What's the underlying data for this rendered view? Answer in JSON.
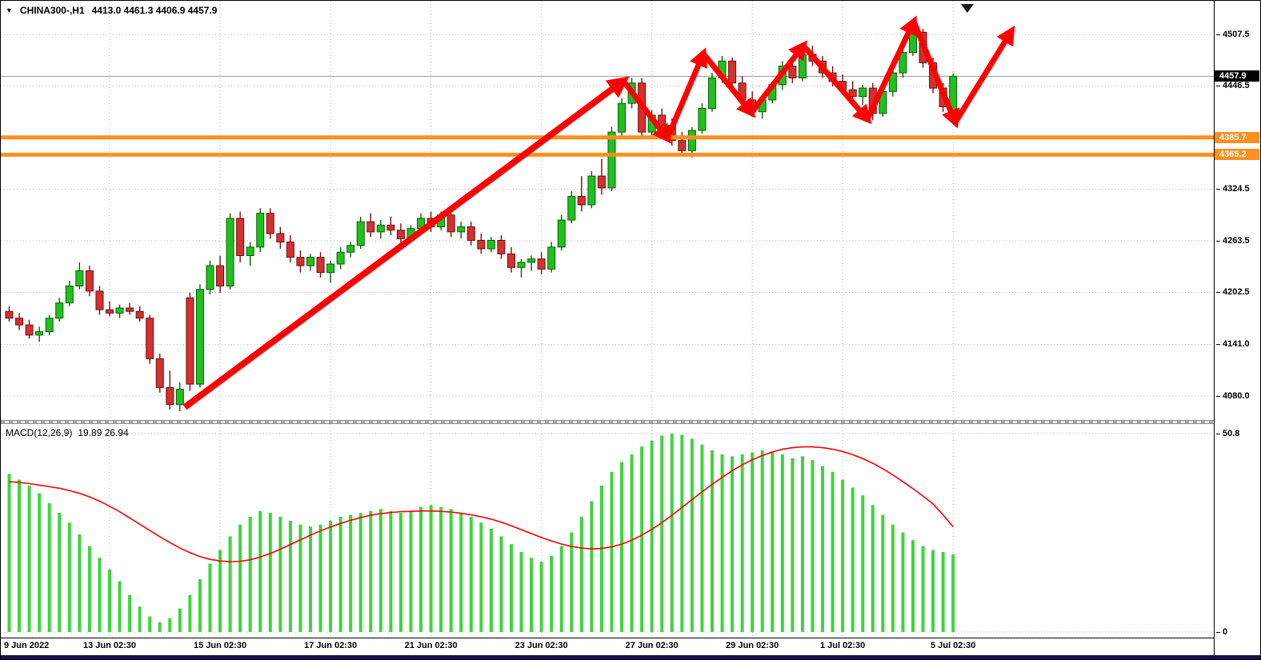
{
  "header": {
    "symbol_period": "CHINA300-,H1",
    "ohlc": "4413.0 4461.3 4406.9 4457.9"
  },
  "icons": {
    "dropdown": "▼"
  },
  "colors": {
    "bull": "#1fc11f",
    "bull_stroke": "#0a5c0a",
    "bear": "#d43030",
    "bear_stroke": "#6e0f0f",
    "grid": "#b4b4b4",
    "hline_orange": "#ff8f1f",
    "arrow": "#ff0000",
    "signal_line": "#ff0000",
    "macd_bar": "#3fd43f",
    "current_price_line": "#9a9a9a",
    "tag_current_bg": "#000000",
    "shift_marker": "#1a1a1a"
  },
  "chart_data": {
    "type": "candlestick",
    "indicator": "MACD",
    "title": "CHINA300- H1",
    "current_price": "4457.9",
    "layout": {
      "x0": 10.5,
      "dx": 12.55,
      "candle_width": 9,
      "grid": "dashed",
      "legend": "none"
    },
    "price_axis": {
      "ymax": 4547.2,
      "ymin": 4051.6,
      "labels": [
        {
          "text": "4507.5",
          "price": 4507.5
        },
        {
          "text": "4446.5",
          "price": 4446.5
        },
        {
          "text": "4324.5",
          "price": 4324.5
        },
        {
          "text": "4263.5",
          "price": 4263.5
        },
        {
          "text": "4202.5",
          "price": 4202.5
        },
        {
          "text": "4141.0",
          "price": 4141.0
        },
        {
          "text": "4080.0",
          "price": 4080.0
        }
      ],
      "gridline_prices": [
        4507.5,
        4446.5,
        4385.5,
        4324.5,
        4263.5,
        4202.5,
        4141.0,
        4080.0
      ]
    },
    "hlines": [
      {
        "value": "4385.7",
        "price": 4385.7
      },
      {
        "value": "4365.2",
        "price": 4365.2
      }
    ],
    "time_labels": [
      {
        "text": "9 Jun 2022",
        "i": 0
      },
      {
        "text": "13 Jun 02:30",
        "i": 10
      },
      {
        "text": "15 Jun 02:30",
        "i": 21
      },
      {
        "text": "17 Jun 02:30",
        "i": 32
      },
      {
        "text": "21 Jun 02:30",
        "i": 42
      },
      {
        "text": "23 Jun 02:30",
        "i": 53
      },
      {
        "text": "27 Jun 02:30",
        "i": 64
      },
      {
        "text": "29 Jun 02:30",
        "i": 74
      },
      {
        "text": "1 Jul 02:30",
        "i": 83
      },
      {
        "text": "5 Jul 02:30",
        "i": 94
      }
    ],
    "candles": [
      [
        4180,
        4186,
        4168,
        4172
      ],
      [
        4172,
        4178,
        4158,
        4164
      ],
      [
        4164,
        4170,
        4148,
        4152
      ],
      [
        4152,
        4162,
        4144,
        4156
      ],
      [
        4156,
        4176,
        4152,
        4172
      ],
      [
        4172,
        4196,
        4168,
        4190
      ],
      [
        4190,
        4216,
        4186,
        4210
      ],
      [
        4210,
        4238,
        4206,
        4228
      ],
      [
        4228,
        4234,
        4198,
        4204
      ],
      [
        4204,
        4210,
        4176,
        4182
      ],
      [
        4182,
        4192,
        4174,
        4178
      ],
      [
        4178,
        4188,
        4172,
        4184
      ],
      [
        4184,
        4190,
        4176,
        4180
      ],
      [
        4180,
        4186,
        4168,
        4172
      ],
      [
        4172,
        4176,
        4118,
        4124
      ],
      [
        4124,
        4130,
        4084,
        4090
      ],
      [
        4090,
        4110,
        4064,
        4070
      ],
      [
        4070,
        4096,
        4062,
        4088
      ],
      [
        4196,
        4202,
        4086,
        4094
      ],
      [
        4094,
        4212,
        4090,
        4206
      ],
      [
        4206,
        4240,
        4200,
        4234
      ],
      [
        4234,
        4246,
        4202,
        4210
      ],
      [
        4210,
        4296,
        4206,
        4290
      ],
      [
        4290,
        4298,
        4238,
        4246
      ],
      [
        4246,
        4262,
        4234,
        4256
      ],
      [
        4256,
        4302,
        4250,
        4296
      ],
      [
        4296,
        4302,
        4266,
        4272
      ],
      [
        4272,
        4280,
        4254,
        4262
      ],
      [
        4262,
        4270,
        4238,
        4244
      ],
      [
        4244,
        4252,
        4226,
        4234
      ],
      [
        4234,
        4248,
        4228,
        4244
      ],
      [
        4244,
        4250,
        4220,
        4226
      ],
      [
        4226,
        4240,
        4214,
        4236
      ],
      [
        4236,
        4256,
        4230,
        4250
      ],
      [
        4250,
        4262,
        4244,
        4258
      ],
      [
        4258,
        4292,
        4254,
        4286
      ],
      [
        4286,
        4296,
        4268,
        4274
      ],
      [
        4274,
        4288,
        4266,
        4282
      ],
      [
        4282,
        4292,
        4270,
        4276
      ],
      [
        4276,
        4284,
        4260,
        4266
      ],
      [
        4266,
        4282,
        4262,
        4278
      ],
      [
        4278,
        4296,
        4272,
        4290
      ],
      [
        4290,
        4298,
        4274,
        4280
      ],
      [
        4280,
        4298,
        4276,
        4294
      ],
      [
        4294,
        4300,
        4268,
        4274
      ],
      [
        4274,
        4286,
        4266,
        4280
      ],
      [
        4280,
        4286,
        4258,
        4264
      ],
      [
        4264,
        4272,
        4248,
        4254
      ],
      [
        4254,
        4268,
        4250,
        4264
      ],
      [
        4264,
        4270,
        4242,
        4248
      ],
      [
        4248,
        4256,
        4226,
        4232
      ],
      [
        4232,
        4242,
        4220,
        4238
      ],
      [
        4238,
        4246,
        4228,
        4242
      ],
      [
        4242,
        4250,
        4224,
        4230
      ],
      [
        4230,
        4262,
        4226,
        4256
      ],
      [
        4256,
        4294,
        4252,
        4288
      ],
      [
        4288,
        4322,
        4284,
        4316
      ],
      [
        4316,
        4340,
        4298,
        4306
      ],
      [
        4306,
        4346,
        4302,
        4340
      ],
      [
        4340,
        4360,
        4318,
        4326
      ],
      [
        4326,
        4398,
        4322,
        4392
      ],
      [
        4392,
        4432,
        4386,
        4426
      ],
      [
        4426,
        4456,
        4420,
        4450
      ],
      [
        4450,
        4456,
        4386,
        4392
      ],
      [
        4392,
        4418,
        4388,
        4412
      ],
      [
        4412,
        4420,
        4394,
        4400
      ],
      [
        4400,
        4408,
        4376,
        4382
      ],
      [
        4382,
        4392,
        4364,
        4370
      ],
      [
        4370,
        4398,
        4362,
        4394
      ],
      [
        4394,
        4426,
        4390,
        4420
      ],
      [
        4420,
        4462,
        4416,
        4456
      ],
      [
        4456,
        4482,
        4450,
        4476
      ],
      [
        4476,
        4480,
        4444,
        4450
      ],
      [
        4450,
        4458,
        4424,
        4430
      ],
      [
        4430,
        4440,
        4410,
        4416
      ],
      [
        4416,
        4436,
        4408,
        4430
      ],
      [
        4430,
        4452,
        4426,
        4448
      ],
      [
        4448,
        4476,
        4442,
        4470
      ],
      [
        4470,
        4478,
        4450,
        4456
      ],
      [
        4456,
        4488,
        4452,
        4484
      ],
      [
        4484,
        4494,
        4470,
        4476
      ],
      [
        4476,
        4482,
        4456,
        4462
      ],
      [
        4462,
        4470,
        4446,
        4452
      ],
      [
        4452,
        4460,
        4436,
        4442
      ],
      [
        4442,
        4452,
        4428,
        4434
      ],
      [
        4434,
        4448,
        4424,
        4444
      ],
      [
        4444,
        4450,
        4406,
        4414
      ],
      [
        4414,
        4446,
        4410,
        4440
      ],
      [
        4440,
        4468,
        4434,
        4462
      ],
      [
        4462,
        4492,
        4456,
        4486
      ],
      [
        4486,
        4518,
        4482,
        4510
      ],
      [
        4510,
        4514,
        4468,
        4474
      ],
      [
        4474,
        4480,
        4438,
        4444
      ],
      [
        4444,
        4450,
        4416,
        4422
      ],
      [
        4413,
        4461.3,
        4406.9,
        4457.9
      ]
    ],
    "macd": {
      "label": "MACD(12,26,9)",
      "values_text": "19.89 26.94",
      "axis_max_label": "50.8",
      "axis_min_label": "0",
      "ylim": [
        0,
        50.8
      ],
      "histogram": [
        40.5,
        39,
        37.5,
        35.5,
        33,
        30.5,
        28,
        25,
        22,
        19,
        16,
        13,
        9.5,
        6.5,
        4,
        2.5,
        3.5,
        6,
        9.5,
        13.5,
        17.5,
        21,
        24.5,
        27.5,
        29.5,
        31,
        30.5,
        29.5,
        28.5,
        27.5,
        27,
        27.5,
        28.5,
        29.5,
        30,
        30.5,
        31,
        31.5,
        31,
        30.5,
        31,
        32,
        32.5,
        32,
        31.5,
        30.5,
        29.5,
        28,
        26.5,
        24.5,
        22.5,
        20.5,
        19,
        18,
        19.5,
        22,
        25.5,
        29.5,
        33.5,
        37.5,
        41,
        43.5,
        45.5,
        47.5,
        49,
        50.3,
        50.8,
        50.5,
        49.5,
        48,
        46.5,
        45.5,
        45,
        45.5,
        46,
        46.5,
        46,
        45.5,
        44.5,
        45,
        44,
        42.5,
        41,
        39,
        37,
        35,
        32.5,
        30,
        27.5,
        25.5,
        23.5,
        22,
        21,
        20.5,
        19.89
      ],
      "signal": [
        38.5,
        38.3,
        38,
        37.6,
        37.2,
        36.8,
        36.2,
        35.5,
        34.6,
        33.5,
        32.2,
        30.8,
        29.2,
        27.6,
        26,
        24.4,
        22.9,
        21.5,
        20.3,
        19.3,
        18.6,
        18.2,
        18,
        18.1,
        18.5,
        19.2,
        20.1,
        21.2,
        22.4,
        23.6,
        24.8,
        25.9,
        26.9,
        27.8,
        28.6,
        29.3,
        29.9,
        30.3,
        30.6,
        30.8,
        30.9,
        31,
        31,
        30.9,
        30.7,
        30.4,
        30,
        29.5,
        28.9,
        28.1,
        27.2,
        26.2,
        25.2,
        24.2,
        23.3,
        22.5,
        21.9,
        21.5,
        21.3,
        21.4,
        21.8,
        22.5,
        23.5,
        24.8,
        26.3,
        28,
        29.9,
        31.9,
        33.9,
        35.9,
        37.8,
        39.6,
        41.3,
        42.8,
        44.1,
        45.2,
        46.1,
        46.8,
        47.2,
        47.4,
        47.4,
        47.2,
        46.8,
        46.2,
        45.4,
        44.4,
        43.2,
        41.8,
        40.2,
        38.5,
        36.7,
        34.8,
        32.8,
        30,
        26.94
      ]
    },
    "annotations": {
      "arrows": [
        [
          230,
          508,
          778,
          100,
          8
        ],
        [
          778,
          100,
          833,
          172,
          7
        ],
        [
          833,
          172,
          878,
          66,
          7
        ],
        [
          878,
          66,
          938,
          140,
          7
        ],
        [
          938,
          140,
          1003,
          56,
          7
        ],
        [
          1003,
          56,
          1083,
          148,
          7
        ],
        [
          1083,
          148,
          1141,
          26,
          7
        ],
        [
          1141,
          26,
          1193,
          152,
          7
        ],
        [
          1193,
          152,
          1263,
          38,
          7
        ]
      ]
    }
  }
}
